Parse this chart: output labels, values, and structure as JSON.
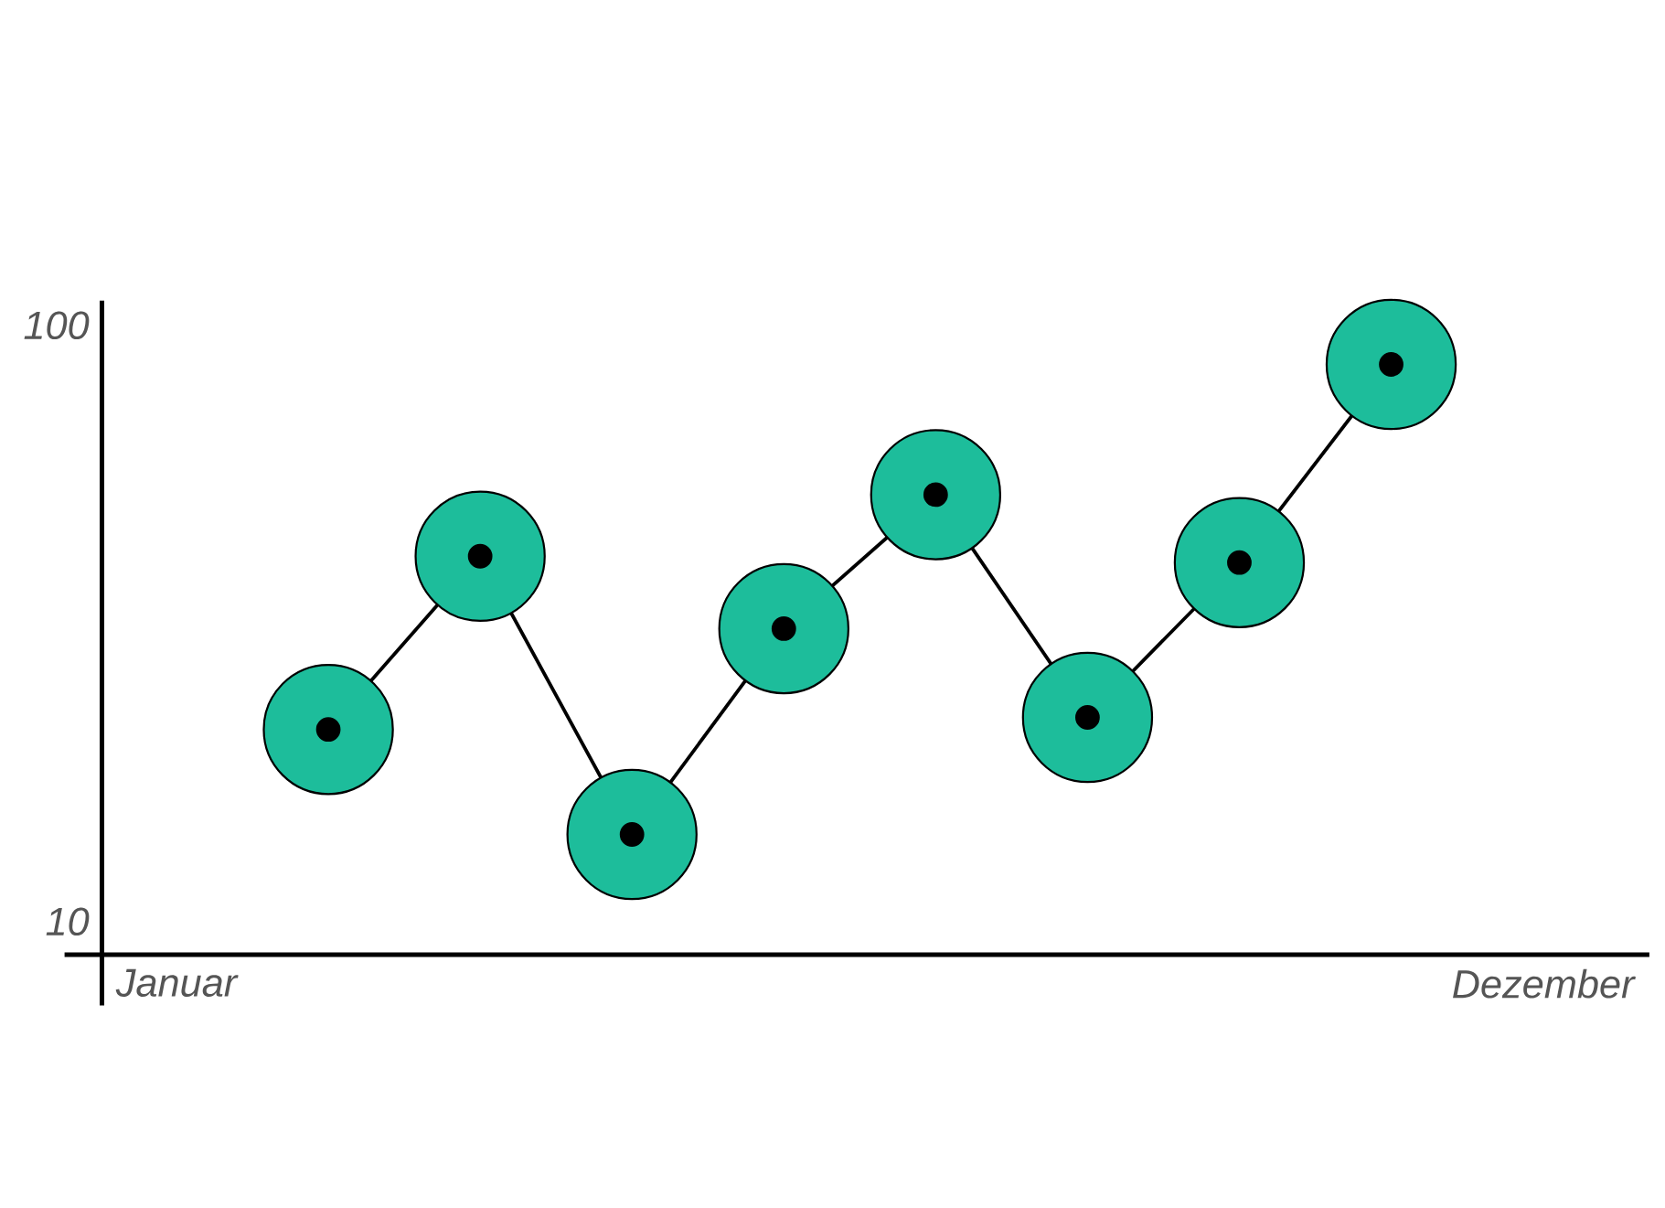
{
  "chart_data": {
    "type": "line",
    "categories": [
      "Januar",
      null,
      null,
      null,
      null,
      null,
      null,
      null,
      null,
      "Dezember"
    ],
    "ylim": [
      8.8,
      110
    ],
    "yticks": [
      10,
      100
    ],
    "log": true,
    "series": [
      {
        "type": "scatter",
        "color": "#1dbd9b",
        "marker": "circle",
        "values": [
          null,
          21,
          41,
          14,
          31,
          52,
          22,
          40,
          86,
          null
        ]
      },
      {
        "color": "#000000",
        "marker": "circle",
        "line_style": "solid",
        "values": [
          null,
          21,
          41,
          14,
          31,
          52,
          22,
          40,
          86,
          null
        ]
      }
    ]
  }
}
